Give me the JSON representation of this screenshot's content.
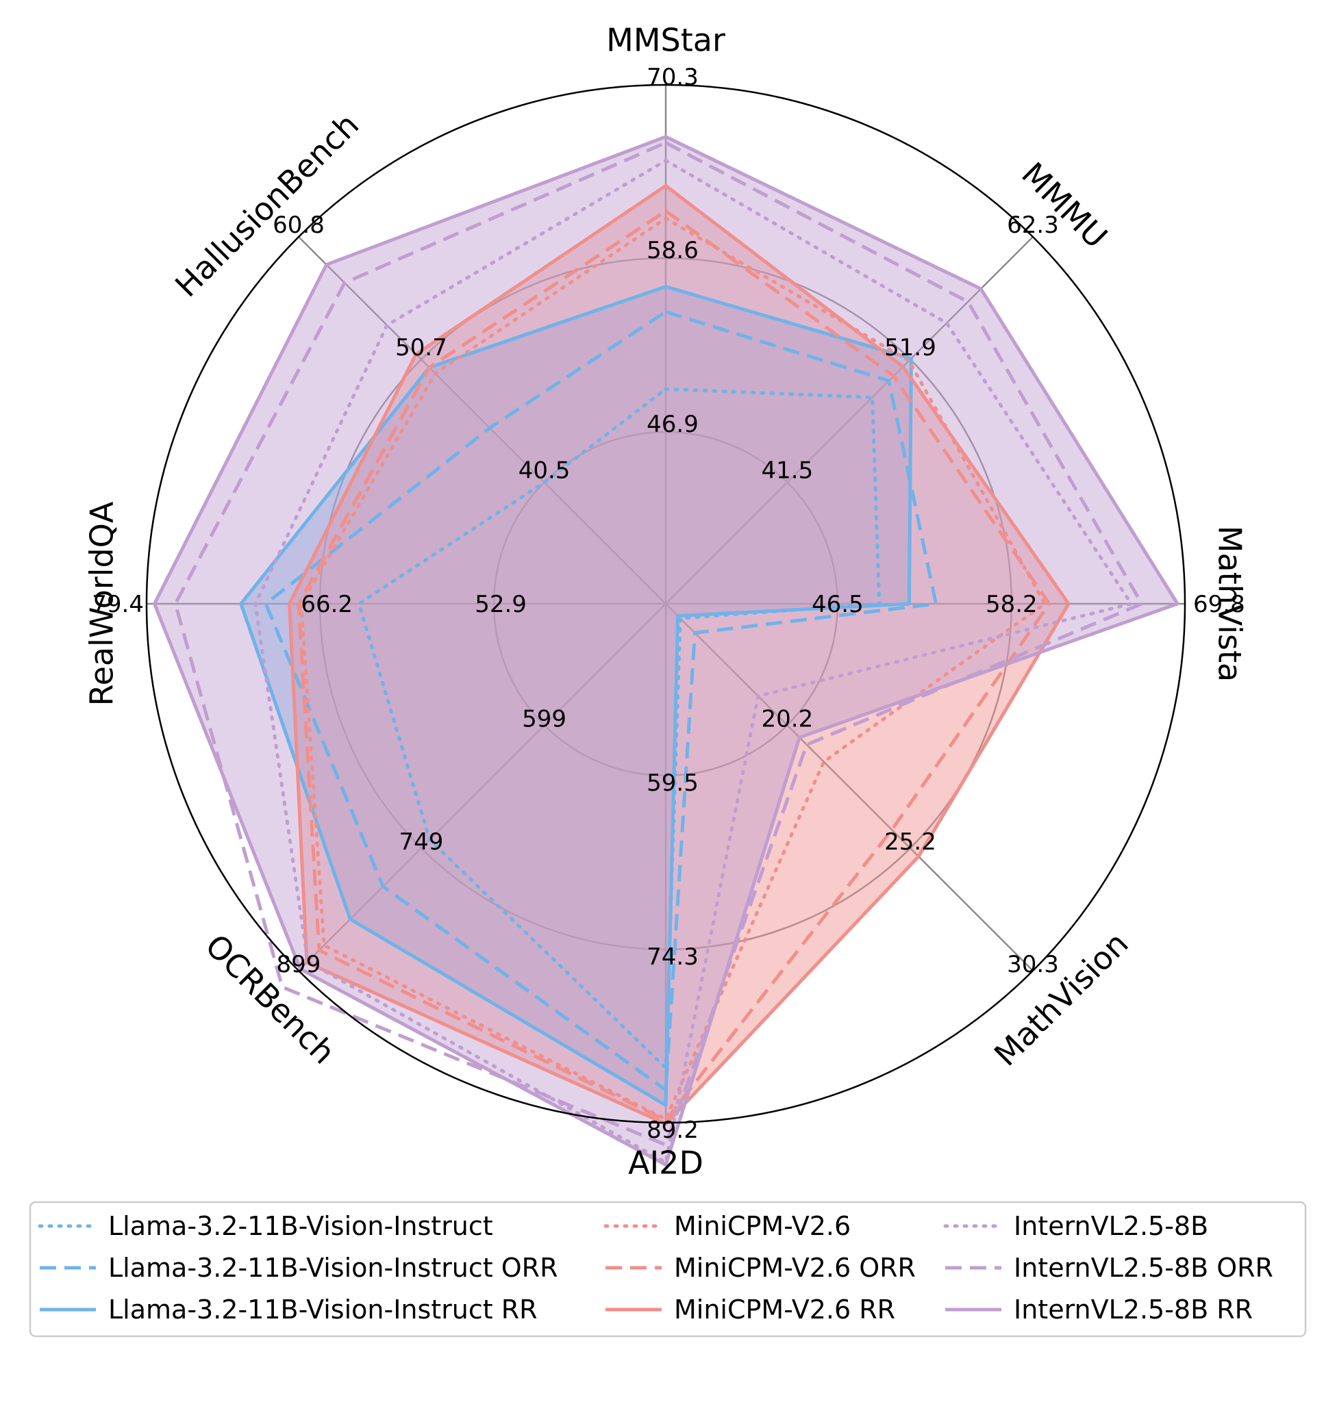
{
  "chart_data": {
    "type": "radar",
    "axes": [
      {
        "name": "MMStar",
        "ticks": [
          "46.9",
          "58.6",
          "70.3"
        ]
      },
      {
        "name": "MMMU",
        "ticks": [
          "41.5",
          "51.9",
          "62.3"
        ]
      },
      {
        "name": "MathVista",
        "ticks": [
          "46.5",
          "58.2",
          "69.8"
        ]
      },
      {
        "name": "MathVision",
        "ticks": [
          "20.2",
          "25.2",
          "30.3"
        ]
      },
      {
        "name": "AI2D",
        "ticks": [
          "59.5",
          "74.3",
          "89.2"
        ]
      },
      {
        "name": "OCRBench",
        "ticks": [
          "599",
          "749",
          "899"
        ]
      },
      {
        "name": "RealWorldQA",
        "ticks": [
          "52.9",
          "66.2",
          "79.4"
        ]
      },
      {
        "name": "HallusionBench",
        "ticks": [
          "40.5",
          "50.7",
          "60.8"
        ]
      }
    ],
    "series": [
      {
        "name": "Llama-3.2-11B-Vision-Instruct",
        "color": "#6fb3e8",
        "style": "dotted",
        "fill": false,
        "values": [
          49.8,
          48.7,
          49.3,
          15.8,
          84.5,
          739,
          63.2,
          40.5
        ]
      },
      {
        "name": "Llama-3.2-11B-Vision-Instruct ORR",
        "color": "#6fb3e8",
        "style": "dashed",
        "fill": false,
        "values": [
          55.0,
          50.1,
          53.1,
          16.4,
          86.4,
          796,
          70.3,
          45.0
        ]
      },
      {
        "name": "Llama-3.2-11B-Vision-Instruct RR",
        "color": "#6fb3e8",
        "style": "solid",
        "fill": true,
        "values": [
          56.7,
          52.0,
          51.3,
          15.7,
          87.7,
          836,
          72.2,
          50.0
        ]
      },
      {
        "name": "MiniCPM-V2.6",
        "color": "#f08f8b",
        "style": "dotted",
        "fill": false,
        "values": [
          61.3,
          51.8,
          60.4,
          21.7,
          88.9,
          868,
          67.6,
          49.5
        ]
      },
      {
        "name": "MiniCPM-V2.6 ORR",
        "color": "#f08f8b",
        "style": "dashed",
        "fill": false,
        "values": [
          61.8,
          50.5,
          60.7,
          24.5,
          89.0,
          874,
          67.8,
          50.0
        ]
      },
      {
        "name": "MiniCPM-V2.6 RR",
        "color": "#f08f8b",
        "style": "solid",
        "fill": true,
        "values": [
          63.5,
          51.3,
          62.0,
          25.6,
          89.3,
          889,
          68.5,
          51.1
        ]
      },
      {
        "name": "InternVL2.5-8B",
        "color": "#c09ed0",
        "style": "dotted",
        "fill": false,
        "values": [
          65.2,
          55.0,
          66.2,
          19.0,
          92.6,
          888,
          71.1,
          53.5
        ]
      },
      {
        "name": "InternVL2.5-8B ORR",
        "color": "#c09ed0",
        "style": "dashed",
        "fill": false,
        "values": [
          66.4,
          56.8,
          66.9,
          21.0,
          91.1,
          919,
          77.2,
          57.0
        ]
      },
      {
        "name": "InternVL2.5-8B RR",
        "color": "#c09ed0",
        "style": "solid",
        "fill": true,
        "values": [
          66.8,
          57.9,
          69.3,
          20.7,
          92.8,
          897,
          78.8,
          58.5
        ]
      }
    ],
    "legend_position": "bottom",
    "grid": true
  }
}
